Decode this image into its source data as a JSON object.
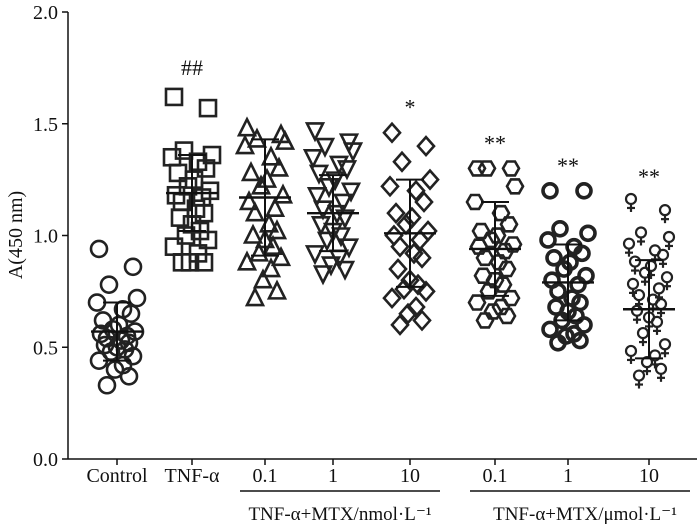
{
  "chart_data": {
    "type": "scatter",
    "ylabel": "A(450 nm)",
    "ylim": [
      0.0,
      2.0
    ],
    "yticks": [
      "0.0",
      "0.5",
      "1.0",
      "1.5",
      "2.0"
    ],
    "categories": [
      "Control",
      "TNF-α",
      "0.1",
      "1",
      "10",
      "0.1",
      "1",
      "10"
    ],
    "group_labels": [
      "TNF-α+MTX/nmol·L⁻¹",
      "TNF-α+MTX/μmol·L⁻¹"
    ],
    "series": [
      {
        "category": "Control",
        "marker": "circle",
        "mean": 0.57,
        "sd": 0.13,
        "significance": "",
        "values": [
          0.94,
          0.86,
          0.78,
          0.72,
          0.7,
          0.67,
          0.65,
          0.62,
          0.6,
          0.58,
          0.57,
          0.56,
          0.55,
          0.54,
          0.53,
          0.52,
          0.51,
          0.5,
          0.49,
          0.48,
          0.46,
          0.44,
          0.42,
          0.4,
          0.37,
          0.33
        ]
      },
      {
        "category": "TNF-α",
        "marker": "square",
        "mean": 1.19,
        "sd": 0.17,
        "significance": "##",
        "values": [
          1.62,
          1.57,
          1.38,
          1.36,
          1.35,
          1.33,
          1.3,
          1.28,
          1.25,
          1.22,
          1.2,
          1.18,
          1.17,
          1.15,
          1.12,
          1.1,
          1.08,
          1.05,
          1.02,
          1.0,
          0.98,
          0.95,
          0.92,
          0.88,
          0.88,
          0.88
        ]
      },
      {
        "category": "0.1",
        "marker": "triangle-up",
        "mean": 1.17,
        "sd": 0.26,
        "significance": "",
        "values": [
          1.48,
          1.45,
          1.43,
          1.42,
          1.4,
          1.35,
          1.3,
          1.28,
          1.25,
          1.22,
          1.18,
          1.15,
          1.12,
          1.1,
          1.05,
          1.02,
          1.0,
          0.98,
          0.95,
          0.92,
          0.9,
          0.88,
          0.85,
          0.8,
          0.75,
          0.72
        ]
      },
      {
        "category": "1",
        "marker": "triangle-down",
        "mean": 1.1,
        "sd": 0.17,
        "significance": "",
        "values": [
          1.47,
          1.42,
          1.4,
          1.38,
          1.35,
          1.32,
          1.3,
          1.28,
          1.25,
          1.22,
          1.2,
          1.18,
          1.15,
          1.12,
          1.1,
          1.08,
          1.05,
          1.02,
          1.0,
          0.98,
          0.95,
          0.92,
          0.9,
          0.87,
          0.85,
          0.83
        ]
      },
      {
        "category": "10",
        "marker": "diamond",
        "mean": 1.01,
        "sd": 0.24,
        "significance": "*",
        "values": [
          1.46,
          1.4,
          1.33,
          1.25,
          1.22,
          1.2,
          1.15,
          1.1,
          1.08,
          1.05,
          1.02,
          1.0,
          0.98,
          0.95,
          0.92,
          0.9,
          0.85,
          0.8,
          0.78,
          0.76,
          0.75,
          0.72,
          0.68,
          0.65,
          0.62,
          0.6
        ]
      },
      {
        "category": "0.1",
        "marker": "hexagon",
        "mean": 0.94,
        "sd": 0.21,
        "significance": "**",
        "values": [
          1.3,
          1.3,
          1.3,
          1.22,
          1.15,
          1.1,
          1.05,
          1.02,
          1.0,
          0.98,
          0.96,
          0.95,
          0.93,
          0.9,
          0.88,
          0.85,
          0.82,
          0.8,
          0.78,
          0.75,
          0.72,
          0.7,
          0.68,
          0.66,
          0.64,
          0.62
        ]
      },
      {
        "category": "1",
        "marker": "ring",
        "mean": 0.79,
        "sd": 0.17,
        "significance": "**",
        "values": [
          1.2,
          1.2,
          1.03,
          1.01,
          0.98,
          0.95,
          0.92,
          0.9,
          0.88,
          0.85,
          0.82,
          0.8,
          0.78,
          0.75,
          0.72,
          0.7,
          0.68,
          0.66,
          0.64,
          0.62,
          0.6,
          0.58,
          0.56,
          0.55,
          0.53,
          0.52
        ]
      },
      {
        "category": "10",
        "marker": "female",
        "mean": 0.67,
        "sd": 0.22,
        "significance": "**",
        "values": [
          1.15,
          1.1,
          1.0,
          0.98,
          0.95,
          0.92,
          0.9,
          0.87,
          0.85,
          0.82,
          0.8,
          0.77,
          0.75,
          0.72,
          0.7,
          0.68,
          0.65,
          0.62,
          0.6,
          0.55,
          0.5,
          0.47,
          0.45,
          0.42,
          0.39,
          0.36
        ]
      }
    ]
  }
}
